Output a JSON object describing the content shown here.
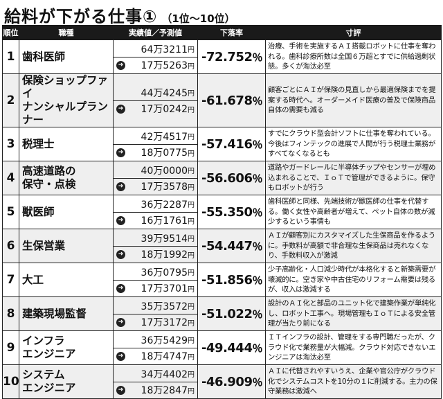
{
  "title": {
    "main": "給料が下がる仕事①",
    "sub": "（1位～10位）"
  },
  "headers": {
    "rank": "順位",
    "job": "職種",
    "values": "実績値／予測値",
    "drop": "下落率",
    "comment": "寸評"
  },
  "units": {
    "man": "万",
    "yen": "円",
    "percent": "％"
  },
  "rows": [
    {
      "rank": "1",
      "job": "歯科医師",
      "actual": "64万3211",
      "forecast": "17万5263",
      "drop": "-72.752",
      "comment": "治療、手術を実施するＡＩ搭載ロボットに仕事を奪われる。歯科診療所数は全国６万超とすでに供給過剰状態。多くが淘汰必至"
    },
    {
      "rank": "2",
      "job": "保険ショップファイ\nナンシャルプランナー",
      "actual": "44万4245",
      "forecast": "17万0242",
      "drop": "-61.678",
      "comment": "顧客ごとにＡＩが保険の見直しから最適保険までを提案する時代へ。オーダーメイド医療の普及で保険商品自体の需要も減る"
    },
    {
      "rank": "3",
      "job": "税理士",
      "actual": "42万4517",
      "forecast": "18万0775",
      "drop": "-57.416",
      "comment": "すでにクラウド型会計ソフトに仕事を奪われている。今後はフィンテックの進展で人間が行う税理士業務がすべてなくなるとも"
    },
    {
      "rank": "4",
      "job": "高速道路の\n保守・点検",
      "actual": "40万0000",
      "forecast": "17万3578",
      "drop": "-56.606",
      "comment": "道路やガードレールに半導体チップやセンサーが埋め込まれることで、ＩｏＴで管理ができるように。保守もロボットが行う"
    },
    {
      "rank": "5",
      "job": "獣医師",
      "actual": "36万2287",
      "forecast": "16万1761",
      "drop": "-55.350",
      "comment": "歯科医師と同様、先端技術が獣医師の仕事を代替する。働く女性や高齢者が増えて、ペット自体の数が減少するという事情も"
    },
    {
      "rank": "6",
      "job": "生保営業",
      "actual": "39万9514",
      "forecast": "18万1992",
      "drop": "-54.447",
      "comment": "ＡＩが顧客別にカスタマイズした生保商品を作るように。手数料が高額で非合理な生保商品は売れなくなり、手数料収入が激減"
    },
    {
      "rank": "7",
      "job": "大工",
      "actual": "36万0795",
      "forecast": "17万3701",
      "drop": "-51.856",
      "comment": "少子高齢化・人口減少時代が本格化すると新築需要が壊滅的に。空き家や中古住宅のリフォーム需要は残るが、収入は激減する"
    },
    {
      "rank": "8",
      "job": "建築現場監督",
      "actual": "35万3572",
      "forecast": "17万3172",
      "drop": "-51.022",
      "comment": "設計のＡＩ化と部品のユニット化で建築作業が単純化し、ロボット工事へ。現場管理もＩｏＴによる安全管理が当たり前になる"
    },
    {
      "rank": "9",
      "job": "インフラ\nエンジニア",
      "actual": "36万5429",
      "forecast": "18万4747",
      "drop": "-49.444",
      "comment": "ＩＴインフラの設計、管理をする専門職だったが、クラウド化で業務量が大幅減。クラウド対応できないエンジニアは淘汰必至"
    },
    {
      "rank": "10",
      "job": "システム\nエンジニア",
      "actual": "34万4402",
      "forecast": "18万2847",
      "drop": "-46.909",
      "comment": "ＡＩに代替されやすいうえ、企業や官公庁がクラウド化でシステムコストを10分の１に削減する。主力の保守業務は激減へ"
    }
  ]
}
